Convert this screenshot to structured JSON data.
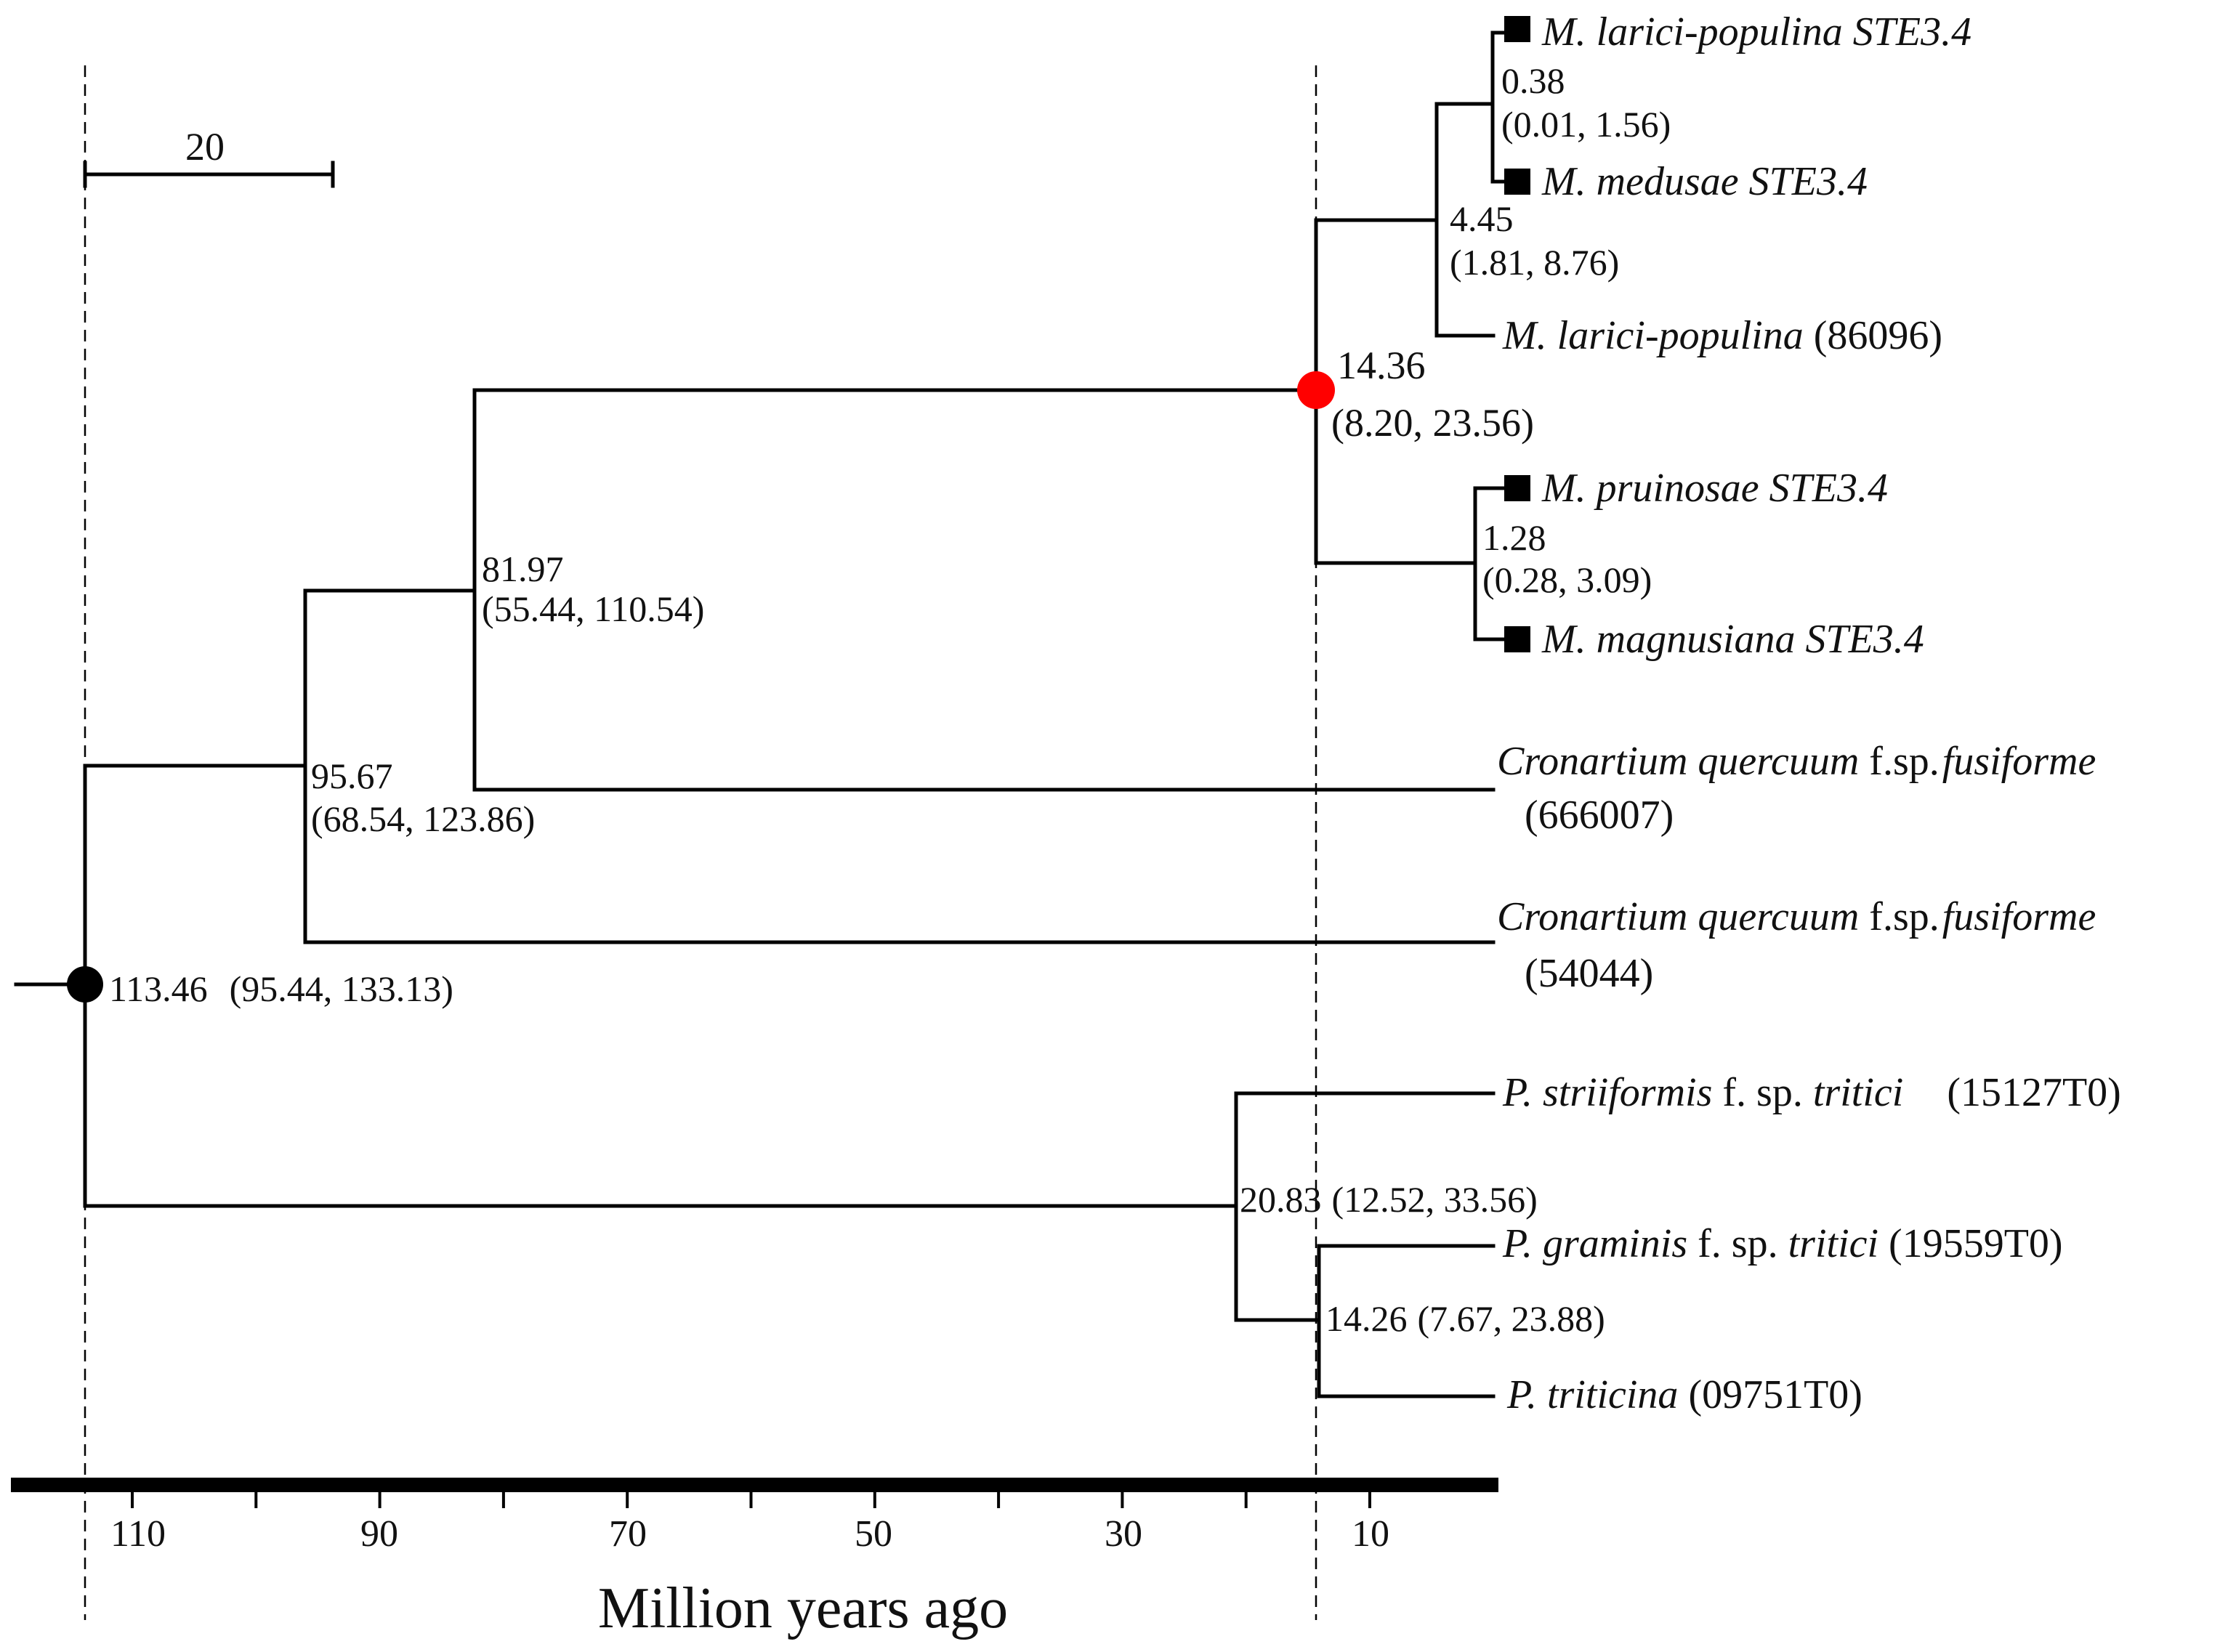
{
  "figure": {
    "scale_bar_label": "20",
    "axis_title": "Million years ago",
    "axis_ticks": [
      "110",
      "90",
      "70",
      "50",
      "30",
      "10"
    ],
    "highlight_colors": {
      "root_marker": "#000000",
      "calibration_marker": "#ff0000"
    }
  },
  "nodes": {
    "root": {
      "age": "113.46",
      "ci": "(95.44, 133.13)"
    },
    "n95": {
      "age": "95.67",
      "ci": "(68.54, 123.86)"
    },
    "n81": {
      "age": "81.97",
      "ci": "(55.44, 110.54)"
    },
    "n14a": {
      "age": "14.36",
      "ci": "(8.20, 23.56)"
    },
    "n4": {
      "age": "4.45",
      "ci": "(1.81, 8.76)"
    },
    "n038": {
      "age": "0.38",
      "ci": "(0.01, 1.56)"
    },
    "n128": {
      "age": "1.28",
      "ci": "(0.28, 3.09)"
    },
    "n20": {
      "age": "20.83",
      "ci": "(12.52, 33.56)"
    },
    "n14b": {
      "age": "14.26",
      "ci": "(7.67, 23.88)"
    }
  },
  "taxa": {
    "mlp_ste": {
      "name": "M. larici-populina STE3.4"
    },
    "mme_ste": {
      "name": "M. medusae STE3.4"
    },
    "mlp": {
      "name": "M. larici-populina",
      "id": "(86096)"
    },
    "mpr_ste": {
      "name": "M. pruinosae STE3.4"
    },
    "mma_ste": {
      "name": "M. magnusiana STE3.4"
    },
    "cq1": {
      "genus": "Cronartium quercuum",
      "fsp": "f.sp.",
      "forma": "fusiforme",
      "id": "(666007)"
    },
    "cq2": {
      "genus": "Cronartium quercuum",
      "fsp": "f.sp.",
      "forma": "fusiforme",
      "id": "(54044)"
    },
    "pst": {
      "name": "P. striiformis",
      "fsp": "f. sp.",
      "forma": "tritici",
      "id": "(15127T0)"
    },
    "pgt": {
      "name": "P. graminis",
      "fsp": "f. sp.",
      "forma": "tritici",
      "id": "(19559T0)"
    },
    "pt": {
      "name": "P. triticina",
      "id": "(09751T0)"
    }
  }
}
